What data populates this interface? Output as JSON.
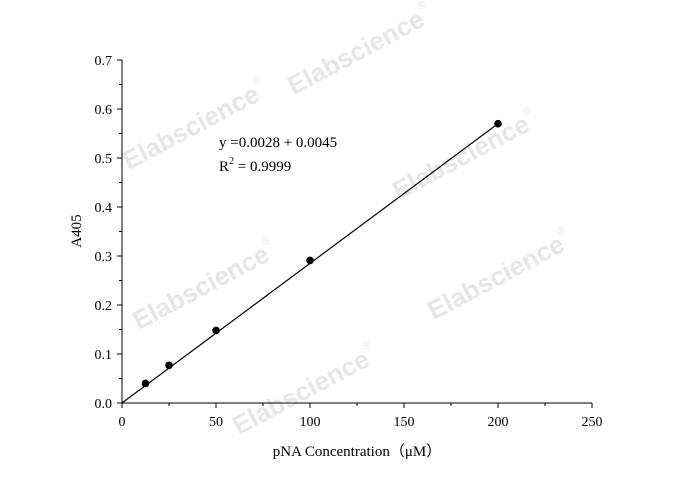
{
  "watermark": {
    "text": "Elabscience",
    "mark": "®"
  },
  "chart_data": {
    "type": "scatter",
    "title": "",
    "xlabel": "pNA Concentration（μM）",
    "ylabel": "A405",
    "xlim": [
      0,
      250
    ],
    "ylim": [
      0,
      0.7
    ],
    "x_ticks": [
      0,
      50,
      100,
      150,
      200,
      250
    ],
    "y_ticks": [
      0.0,
      0.1,
      0.2,
      0.3,
      0.4,
      0.5,
      0.6,
      0.7
    ],
    "x_tick_labels": [
      "0",
      "50",
      "100",
      "150",
      "200",
      "250"
    ],
    "y_tick_labels": [
      "0.0",
      "0.1",
      "0.2",
      "0.3",
      "0.4",
      "0.5",
      "0.6",
      "0.7"
    ],
    "grid": false,
    "series": [
      {
        "x": [
          12.5,
          25,
          50,
          100,
          200
        ],
        "y": [
          0.04,
          0.077,
          0.148,
          0.291,
          0.57
        ]
      }
    ],
    "fit_line": {
      "slope": 0.0028,
      "intercept": 0.0045,
      "x_range": [
        0,
        200
      ]
    },
    "annotation": {
      "equation": "y =0.0028 + 0.0045",
      "r2_prefix": "R",
      "r2_sup": "2",
      "r2_value": " = 0.9999"
    },
    "colors": {
      "marker": "#000000",
      "line": "#000000",
      "axis": "#000000",
      "watermark": "#e6e6e6"
    }
  }
}
